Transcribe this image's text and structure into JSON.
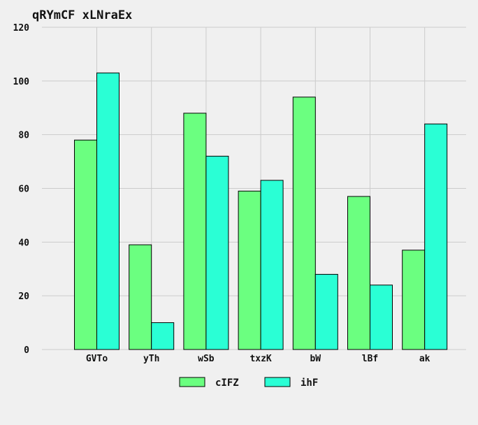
{
  "chart_data": {
    "type": "bar",
    "title": "qRYmCF xLNraEx",
    "xlabel": "",
    "ylabel": "",
    "categories": [
      "GVTo",
      "yTh",
      "wSb",
      "txzK",
      "bW",
      "lBf",
      "ak"
    ],
    "series": [
      {
        "name": "cIFZ",
        "color": "#6bff80",
        "values": [
          78,
          39,
          88,
          59,
          94,
          57,
          37
        ]
      },
      {
        "name": "ihF",
        "color": "#2affd5",
        "values": [
          103,
          10,
          72,
          63,
          28,
          24,
          84
        ]
      }
    ],
    "ylim": [
      0,
      120
    ],
    "yticks": [
      0,
      20,
      40,
      60,
      80,
      100,
      120
    ],
    "grid": true,
    "legend": "bottom-center"
  }
}
